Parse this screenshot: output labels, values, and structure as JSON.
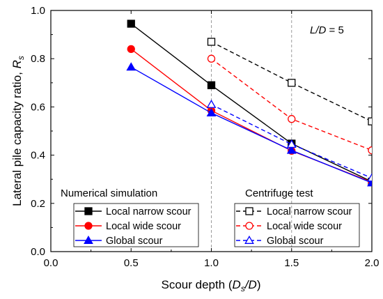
{
  "chart_data": {
    "type": "line",
    "xlabel_prefix": "Scour depth (",
    "xlabel_var": "D",
    "xlabel_sub": "s",
    "xlabel_suffix": "/D)",
    "ylabel_prefix": "Lateral pile capacity ratio, ",
    "ylabel_var": "R",
    "ylabel_sub": "s",
    "annotation": "L/D = 5",
    "annotation_var": "L/D",
    "annotation_rest": " = 5",
    "xlim": [
      0.0,
      2.0
    ],
    "ylim": [
      0.0,
      1.0
    ],
    "x_ticks": [
      "0.0",
      "0.5",
      "1.0",
      "1.5",
      "2.0"
    ],
    "y_ticks": [
      "0.0",
      "0.2",
      "0.4",
      "0.6",
      "0.8",
      "1.0"
    ],
    "grid": "dashed at x = 1.0 and 1.5",
    "legend_groups": [
      {
        "title": "Numerical simulation",
        "placement": "bottom-left"
      },
      {
        "title": "Centrifuge test",
        "placement": "bottom-right"
      }
    ],
    "series": [
      {
        "name": "Local narrow scour",
        "group": "Numerical simulation",
        "color": "#000000",
        "marker": "square",
        "filled": true,
        "dashed": false,
        "x": [
          0.5,
          1.0,
          1.5,
          2.0
        ],
        "y": [
          0.945,
          0.69,
          0.448,
          0.29
        ]
      },
      {
        "name": "Local wide scour",
        "group": "Numerical simulation",
        "color": "#ff0000",
        "marker": "circle",
        "filled": true,
        "dashed": false,
        "x": [
          0.5,
          1.0,
          1.5,
          2.0
        ],
        "y": [
          0.84,
          0.585,
          0.418,
          0.288
        ]
      },
      {
        "name": "Global scour",
        "group": "Numerical simulation",
        "color": "#0000ff",
        "marker": "triangle",
        "filled": true,
        "dashed": false,
        "x": [
          0.5,
          1.0,
          1.5,
          2.0
        ],
        "y": [
          0.765,
          0.575,
          0.42,
          0.285
        ]
      },
      {
        "name": "Local narrow scour",
        "group": "Centrifuge test",
        "color": "#000000",
        "marker": "square",
        "filled": false,
        "dashed": true,
        "x": [
          1.0,
          1.5,
          2.0
        ],
        "y": [
          0.87,
          0.7,
          0.54
        ]
      },
      {
        "name": "Local wide scour",
        "group": "Centrifuge test",
        "color": "#ff0000",
        "marker": "circle",
        "filled": false,
        "dashed": true,
        "x": [
          1.0,
          1.5,
          2.0
        ],
        "y": [
          0.8,
          0.55,
          0.42
        ]
      },
      {
        "name": "Global scour",
        "group": "Centrifuge test",
        "color": "#0000ff",
        "marker": "triangle",
        "filled": false,
        "dashed": true,
        "x": [
          1.0,
          1.5,
          2.0
        ],
        "y": [
          0.61,
          0.445,
          0.305
        ]
      }
    ]
  }
}
